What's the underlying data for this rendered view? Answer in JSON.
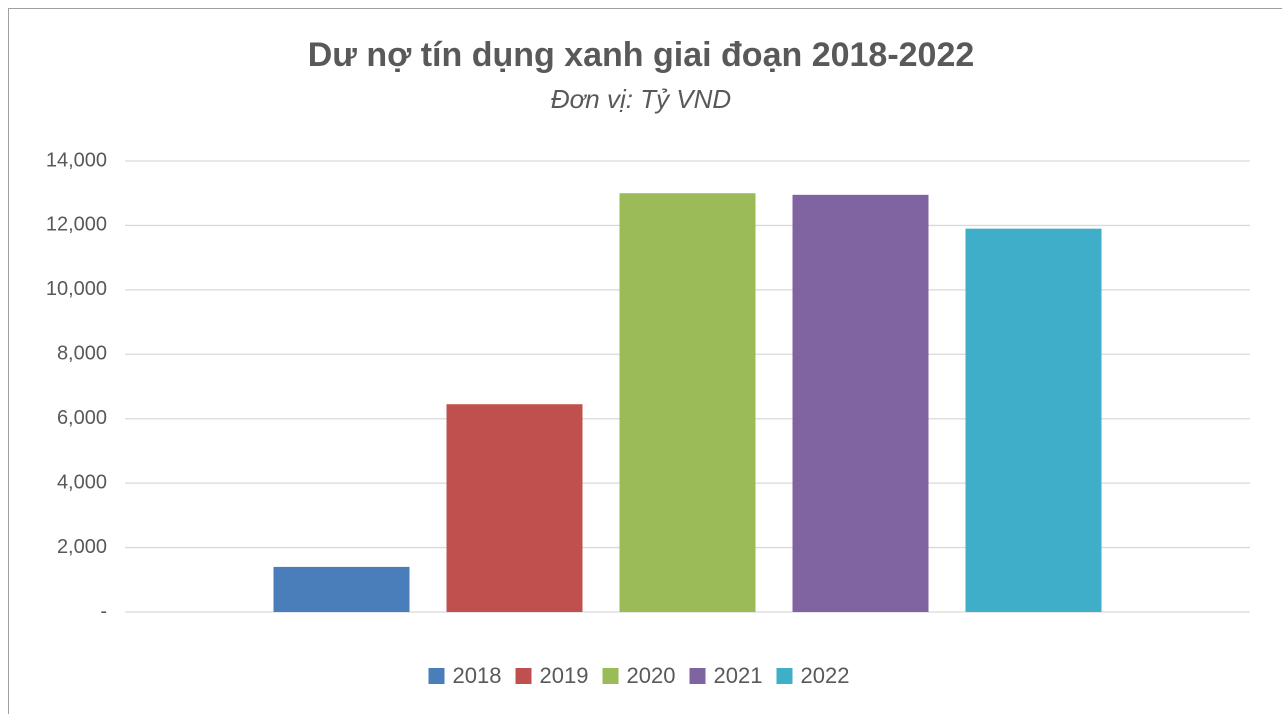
{
  "chart_data": {
    "type": "bar",
    "title": "Dư nợ tín dụng xanh giai đoạn 2018-2022",
    "subtitle": "Đơn vị: Tỷ VND",
    "categories": [
      null
    ],
    "series": [
      {
        "name": "2018",
        "color": "#4a7ebb",
        "values": [
          1400
        ]
      },
      {
        "name": "2019",
        "color": "#c0504d",
        "values": [
          6450
        ]
      },
      {
        "name": "2020",
        "color": "#9bbb59",
        "values": [
          13000
        ]
      },
      {
        "name": "2021",
        "color": "#8064a2",
        "values": [
          12950
        ]
      },
      {
        "name": "2022",
        "color": "#3faec9",
        "values": [
          11900
        ]
      }
    ],
    "ylim": [
      0,
      14000
    ],
    "yticks": [
      {
        "value": 0,
        "label": "-"
      },
      {
        "value": 2000,
        "label": "2,000"
      },
      {
        "value": 4000,
        "label": "4,000"
      },
      {
        "value": 6000,
        "label": "6,000"
      },
      {
        "value": 8000,
        "label": "8,000"
      },
      {
        "value": 10000,
        "label": "10,000"
      },
      {
        "value": 12000,
        "label": "12,000"
      },
      {
        "value": 14000,
        "label": "14,000"
      }
    ],
    "grid": true,
    "legend": "bottom"
  }
}
